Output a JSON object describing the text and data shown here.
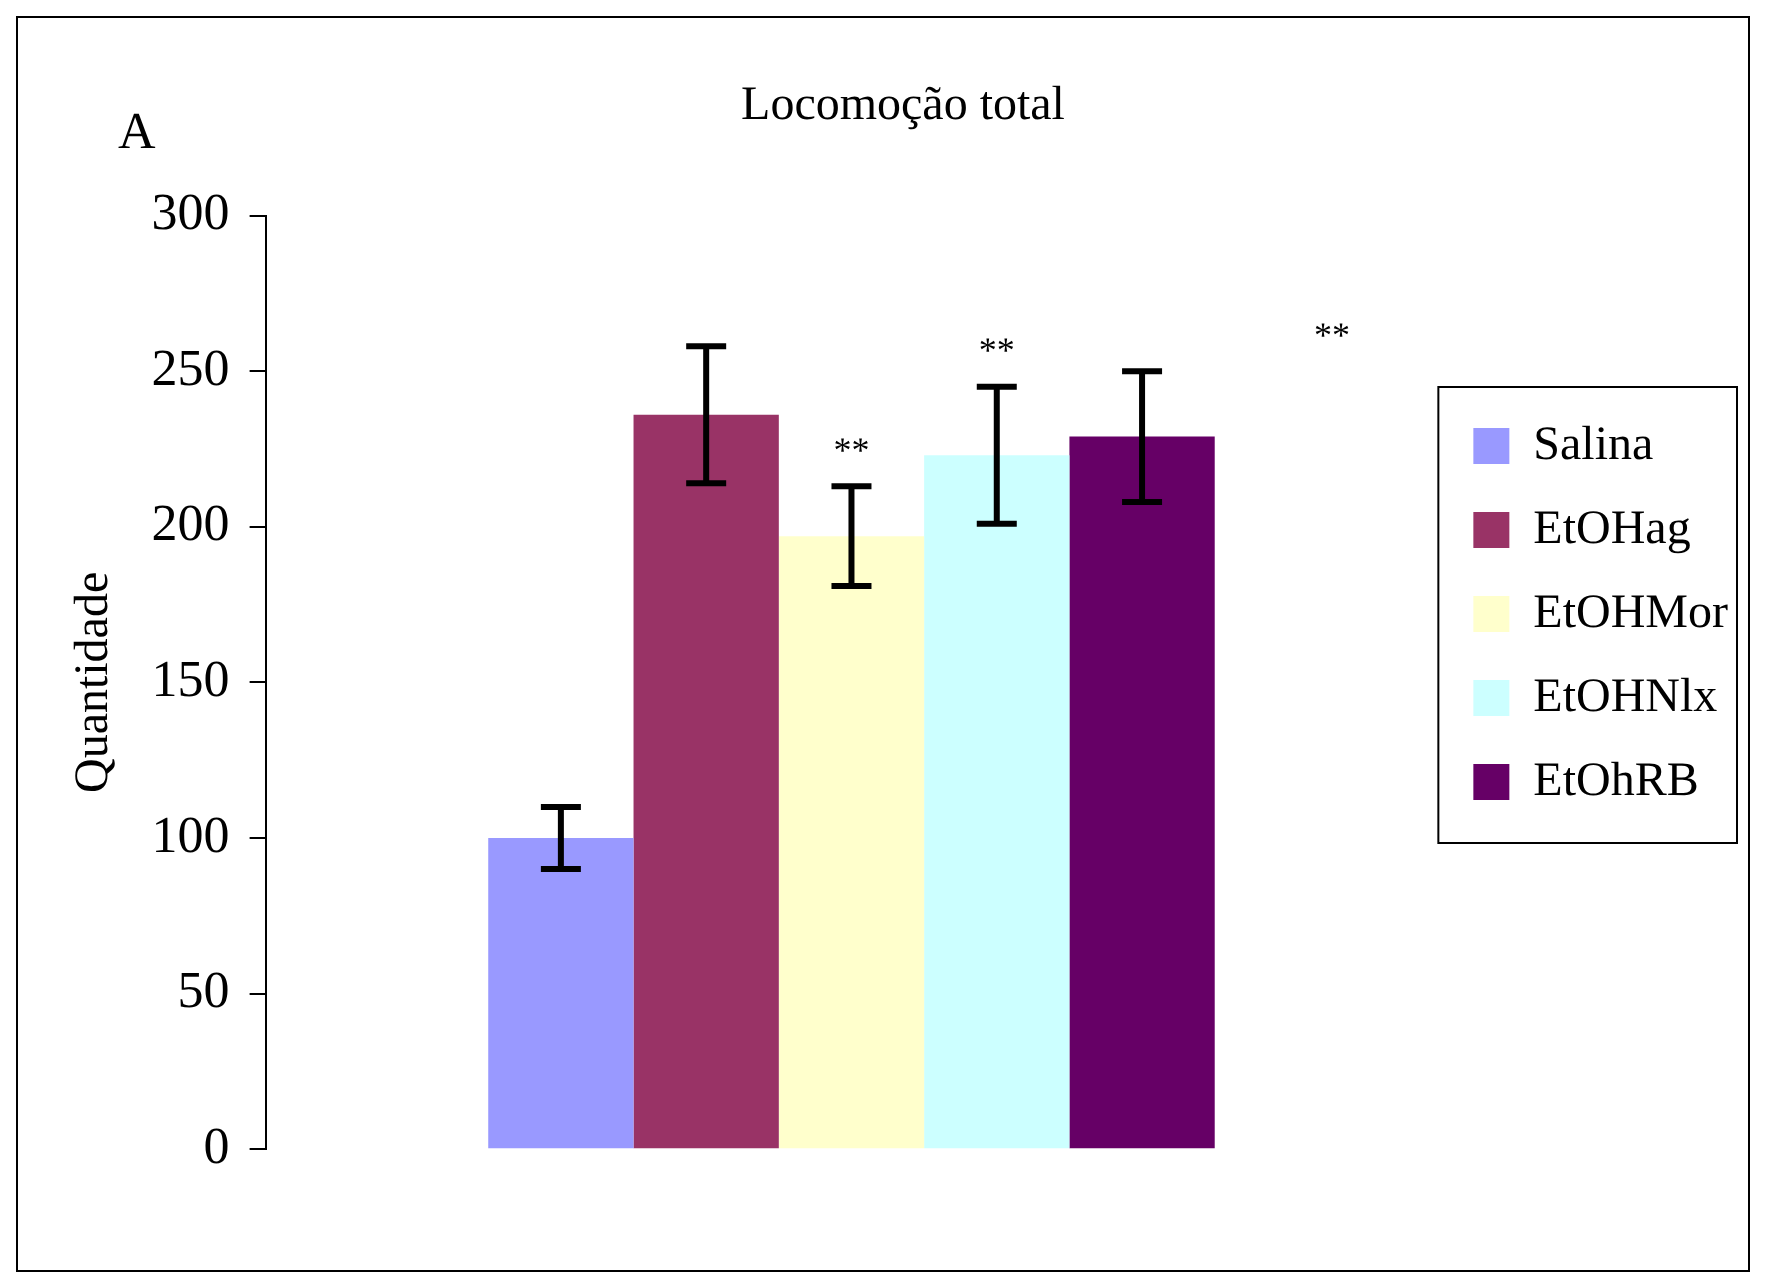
{
  "chart_data": {
    "type": "bar",
    "title": "Locomoção total",
    "ylabel": "Quantidade",
    "categories": [
      null
    ],
    "series": [
      {
        "name": "Salina",
        "color": "#9999ff",
        "values": [
          100
        ],
        "errors": [
          10
        ]
      },
      {
        "name": "EtOHag",
        "color": "#993366",
        "values": [
          236
        ],
        "errors": [
          22
        ]
      },
      {
        "name": "EtOHMor",
        "color": "#ffffcc",
        "values": [
          197
        ],
        "errors": [
          16
        ]
      },
      {
        "name": "EtOHNlx",
        "color": "#ccffff",
        "values": [
          223
        ],
        "errors": [
          22
        ]
      },
      {
        "name": "EtOhRB",
        "color": "#660066",
        "values": [
          229
        ],
        "errors": [
          21
        ]
      }
    ],
    "ylim": [
      0,
      300
    ],
    "yticks": [
      0,
      50,
      100,
      150,
      200,
      250,
      300
    ],
    "grid": false,
    "legend": "right",
    "annotations": [
      "A",
      "**",
      "**",
      "**"
    ]
  }
}
